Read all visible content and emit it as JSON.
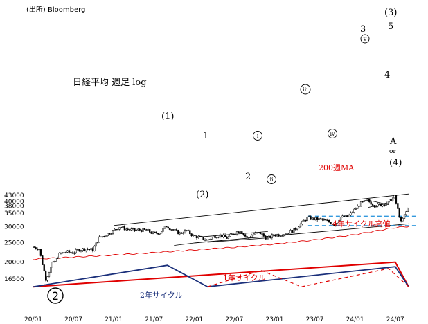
{
  "source": "(出所) Bloomberg",
  "title": "日経平均 週足 log",
  "ma_label": "200週MA",
  "cycle_labels": {
    "four_year": "4年サイクル高値",
    "two_year": "2年サイクル",
    "one_year": "1年サイクル"
  },
  "wave_labels": {
    "w3_big": "(3)",
    "w3": "3",
    "w5": "5",
    "w1_paren": "(1)",
    "w1": "1",
    "w2": "2",
    "w2_paren": "(2)",
    "w4": "4",
    "wA": "A",
    "wor": "or",
    "w4_paren": "(4)",
    "wi": "i",
    "wii": "ii",
    "wiii": "iii",
    "wiv": "iv",
    "wv": "v",
    "w2_circle": "2"
  },
  "colors": {
    "candle": "#000000",
    "ma": "#e00000",
    "channel": "#000000",
    "dashed_level": "#3399dd",
    "cycle_red": "#e00000",
    "cycle_blue": "#1a2f7a"
  },
  "chart_data": {
    "type": "candlestick",
    "scale": "log",
    "x_ticks": [
      "20/01",
      "20/07",
      "21/01",
      "21/07",
      "22/01",
      "22/07",
      "23/01",
      "23/07",
      "24/01",
      "24/07"
    ],
    "y_ticks": [
      16500,
      20000,
      25000,
      30000,
      35000,
      38000,
      40000,
      43000
    ],
    "ylim": [
      15000,
      47000
    ],
    "close_series": [
      [
        "20/01",
        23800
      ],
      [
        "20/02",
        23300
      ],
      [
        "20/03",
        16500
      ],
      [
        "20/04",
        19600
      ],
      [
        "20/05",
        21900
      ],
      [
        "20/06",
        22500
      ],
      [
        "20/07",
        22300
      ],
      [
        "20/08",
        23100
      ],
      [
        "20/09",
        23300
      ],
      [
        "20/10",
        23000
      ],
      [
        "20/11",
        26400
      ],
      [
        "20/12",
        27400
      ],
      [
        "21/01",
        28500
      ],
      [
        "21/02",
        30000
      ],
      [
        "21/03",
        29200
      ],
      [
        "21/04",
        28800
      ],
      [
        "21/05",
        28900
      ],
      [
        "21/06",
        28800
      ],
      [
        "21/07",
        27800
      ],
      [
        "21/08",
        28100
      ],
      [
        "21/09",
        30200
      ],
      [
        "21/10",
        28900
      ],
      [
        "21/11",
        27800
      ],
      [
        "21/12",
        28700
      ],
      [
        "22/01",
        27000
      ],
      [
        "22/02",
        26500
      ],
      [
        "22/03",
        25700
      ],
      [
        "22/04",
        26800
      ],
      [
        "22/05",
        27200
      ],
      [
        "22/06",
        26400
      ],
      [
        "22/07",
        27800
      ],
      [
        "22/08",
        28800
      ],
      [
        "22/09",
        26300
      ],
      [
        "22/10",
        27600
      ],
      [
        "22/11",
        27900
      ],
      [
        "22/12",
        26100
      ],
      [
        "23/01",
        27300
      ],
      [
        "23/02",
        27400
      ],
      [
        "23/03",
        28000
      ],
      [
        "23/04",
        28900
      ],
      [
        "23/05",
        30900
      ],
      [
        "23/06",
        33200
      ],
      [
        "23/07",
        32700
      ],
      [
        "23/08",
        32600
      ],
      [
        "23/09",
        31900
      ],
      [
        "23/10",
        30800
      ],
      [
        "23/11",
        33500
      ],
      [
        "23/12",
        33500
      ],
      [
        "24/01",
        36300
      ],
      [
        "24/02",
        39200
      ],
      [
        "24/03",
        40400
      ],
      [
        "24/04",
        38400
      ],
      [
        "24/05",
        38500
      ],
      [
        "24/06",
        39600
      ],
      [
        "24/07",
        42200
      ],
      [
        "24/08",
        31500
      ],
      [
        "24/09",
        37000
      ]
    ],
    "ma200": [
      [
        "20/01",
        20700
      ],
      [
        "20/07",
        21200
      ],
      [
        "21/01",
        21700
      ],
      [
        "21/07",
        22300
      ],
      [
        "22/01",
        23000
      ],
      [
        "22/07",
        23700
      ],
      [
        "23/01",
        24600
      ],
      [
        "23/07",
        25800
      ],
      [
        "24/01",
        27400
      ],
      [
        "24/07",
        29700
      ],
      [
        "24/09",
        30100
      ]
    ],
    "levels": [
      33800,
      30400
    ],
    "channel_upper": [
      [
        "21/01",
        30400
      ],
      [
        "24/09",
        43600
      ]
    ],
    "channel_lower": [
      [
        "22/01",
        24900
      ],
      [
        "24/09",
        31000
      ]
    ],
    "cycle_lines": {
      "four_year_red": [
        [
          "20/01",
          15100
        ],
        [
          "24/07",
          20000
        ],
        [
          "24/09",
          15100
        ]
      ],
      "two_year_blue": [
        [
          "20/01",
          15100
        ],
        [
          "21/09",
          19300
        ],
        [
          "22/03",
          15100
        ],
        [
          "24/07",
          19000
        ],
        [
          "24/09",
          15100
        ]
      ],
      "one_year_red_dashed": [
        [
          "22/03",
          15100
        ],
        [
          "22/11",
          18200
        ],
        [
          "23/05",
          15100
        ],
        [
          "24/06",
          18600
        ],
        [
          "24/09",
          15100
        ]
      ]
    }
  }
}
